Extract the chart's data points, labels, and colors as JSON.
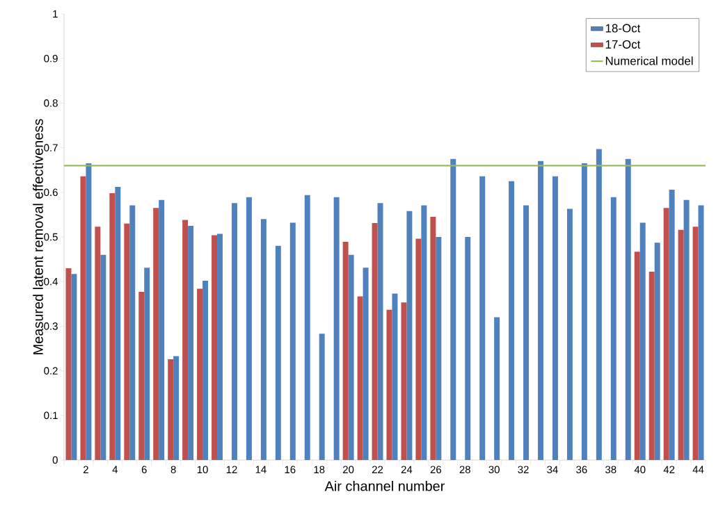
{
  "chart_data": {
    "type": "bar",
    "xlabel": "Air channel number",
    "ylabel": "Measured latent removal effectiveness",
    "categories": [
      null,
      "2",
      null,
      "4",
      null,
      "6",
      null,
      "8",
      null,
      "10",
      null,
      "12",
      null,
      "14",
      null,
      "16",
      null,
      "18",
      null,
      "20",
      null,
      "22",
      null,
      "24",
      null,
      "26",
      null,
      "28",
      null,
      "30",
      null,
      "32",
      null,
      "34",
      null,
      "36",
      null,
      "38",
      null,
      "40",
      null,
      "42",
      null,
      "44"
    ],
    "series": [
      {
        "name": "18-Oct",
        "color": "#4f81bd",
        "values": [
          0.417,
          0.665,
          0.46,
          0.612,
          0.571,
          0.431,
          0.583,
          0.233,
          0.525,
          0.402,
          0.507,
          0.576,
          0.589,
          0.54,
          0.48,
          0.532,
          0.594,
          0.283,
          0.589,
          0.46,
          0.431,
          0.576,
          0.373,
          0.558,
          0.571,
          0.5,
          0.675,
          0.5,
          0.636,
          0.32,
          0.625,
          0.571,
          0.67,
          0.636,
          0.563,
          0.665,
          0.697,
          0.589,
          0.675,
          0.532,
          0.487,
          0.606,
          0.583,
          0.571
        ]
      },
      {
        "name": "17-Oct",
        "color": "#c0504d",
        "values": [
          0.43,
          0.636,
          0.523,
          0.598,
          0.53,
          0.377,
          0.565,
          0.226,
          0.538,
          0.384,
          0.504,
          null,
          null,
          null,
          null,
          null,
          null,
          null,
          null,
          0.489,
          0.367,
          0.531,
          0.337,
          0.353,
          0.496,
          0.545,
          null,
          null,
          null,
          null,
          null,
          null,
          null,
          null,
          null,
          null,
          null,
          null,
          null,
          0.467,
          0.422,
          0.565,
          0.516,
          0.523
        ]
      }
    ],
    "ref_lines": [
      {
        "axis": "y",
        "value": 0.66,
        "label": "Numerical model",
        "color": "#9bbb59"
      }
    ],
    "ylim": [
      0,
      1
    ],
    "yticks": [
      0,
      0.1,
      0.2,
      0.3,
      0.4,
      0.5,
      0.6,
      0.7,
      0.8,
      0.9,
      1
    ],
    "legend": "top right"
  }
}
